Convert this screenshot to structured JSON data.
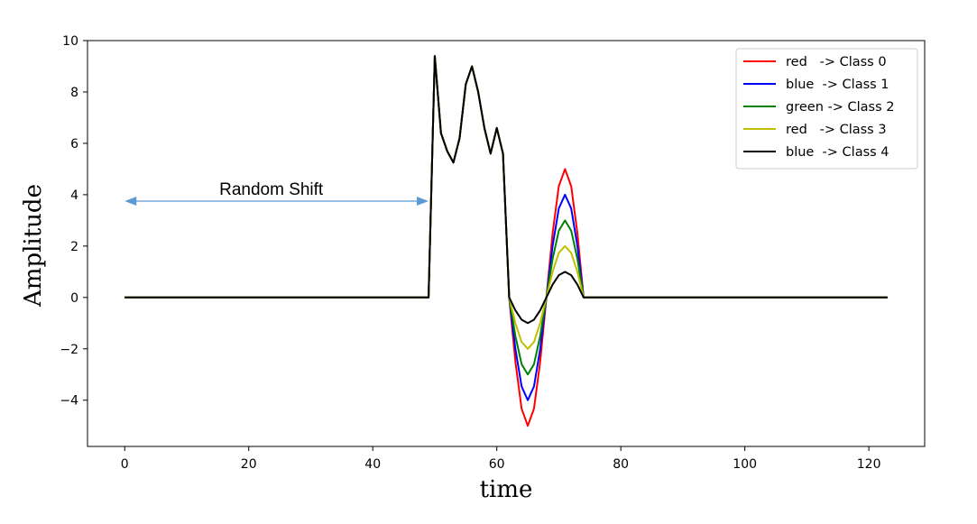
{
  "chart_data": {
    "type": "line",
    "title": "",
    "xlabel": "time",
    "ylabel": "Amplitude",
    "xlim": [
      -6,
      129
    ],
    "ylim": [
      -5.8,
      10
    ],
    "xticks": [
      0,
      20,
      40,
      60,
      80,
      100,
      120
    ],
    "yticks": [
      -4,
      -2,
      0,
      2,
      4,
      6,
      8,
      10
    ],
    "ytick_labels": [
      "−4",
      "−2",
      "0",
      "2",
      "4",
      "6",
      "8",
      "10"
    ],
    "grid": false,
    "legend_position": "top-right",
    "common_segment": {
      "x": [
        0,
        49,
        50,
        51,
        52,
        53,
        54,
        55,
        56,
        57,
        58,
        59,
        60,
        61,
        62
      ],
      "y": [
        0,
        0,
        9.4,
        6.4,
        5.7,
        5.25,
        6.2,
        8.3,
        9.0,
        8.0,
        6.6,
        5.6,
        6.6,
        5.6,
        0
      ]
    },
    "series": [
      {
        "name": "red   -> Class 0",
        "color": "#ff0000",
        "amplitude": 5
      },
      {
        "name": "blue  -> Class 1",
        "color": "#0000ff",
        "amplitude": 4
      },
      {
        "name": "green -> Class 2",
        "color": "#008000",
        "amplitude": 3
      },
      {
        "name": "red   -> Class 3",
        "color": "#bfbf00",
        "amplitude": 2
      },
      {
        "name": "blue  -> Class 4",
        "color": "#000000",
        "amplitude": 1
      }
    ],
    "oscillation": {
      "x_start": 62,
      "x_end": 74,
      "x_trough": 65,
      "x_peak": 71,
      "tail_x_end": 123
    },
    "annotation": {
      "text": "Random Shift",
      "arrow_color": "#5b9bd5",
      "x_from": 0,
      "x_to": 49,
      "y": 3.75
    }
  }
}
